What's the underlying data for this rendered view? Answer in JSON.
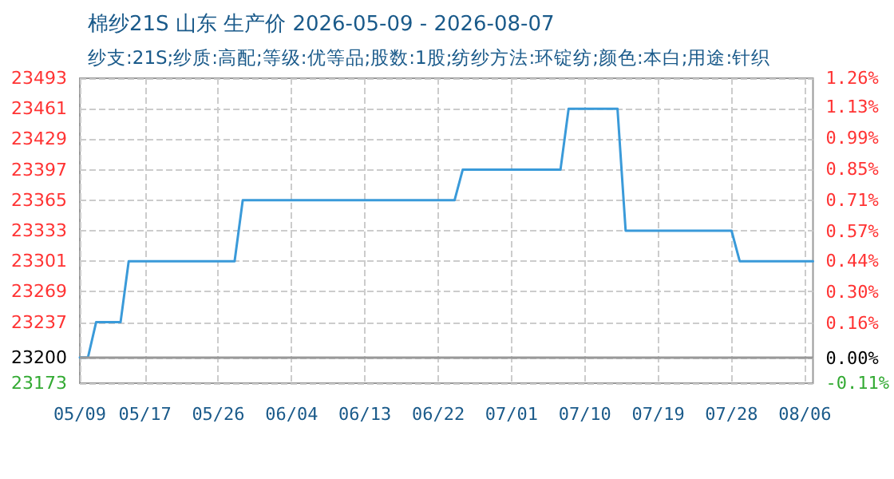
{
  "chart_data": {
    "type": "line",
    "title": "棉纱21S 山东 生产价 2026-05-09 - 2026-08-07",
    "subtitle": "纱支:21S;纱质:高配;等级:优等品;股数:1股;纺纱方法:环锭纺;颜色:本白;用途:针织",
    "x": [
      "2026-05-09",
      "2026-05-10",
      "2026-05-11",
      "2026-05-14",
      "2026-05-15",
      "2026-05-28",
      "2026-05-29",
      "2026-06-24",
      "2026-06-25",
      "2026-07-07",
      "2026-07-08",
      "2026-07-14",
      "2026-07-15",
      "2026-07-28",
      "2026-07-29",
      "2026-08-07"
    ],
    "series": [
      {
        "color": "#3a9ad9",
        "values": [
          23200,
          23200,
          23237,
          23237,
          23301,
          23301,
          23365,
          23365,
          23397,
          23397,
          23461,
          23461,
          23333,
          23333,
          23301,
          23301
        ]
      }
    ],
    "xlim": [
      "2026-05-09",
      "2026-08-07"
    ],
    "xticks": [
      {
        "value": "2026-05-09",
        "label": "05/09"
      },
      {
        "value": "2026-05-17",
        "label": "05/17"
      },
      {
        "value": "2026-05-26",
        "label": "05/26"
      },
      {
        "value": "2026-06-04",
        "label": "06/04"
      },
      {
        "value": "2026-06-13",
        "label": "06/13"
      },
      {
        "value": "2026-06-22",
        "label": "06/22"
      },
      {
        "value": "2026-07-01",
        "label": "07/01"
      },
      {
        "value": "2026-07-10",
        "label": "07/10"
      },
      {
        "value": "2026-07-19",
        "label": "07/19"
      },
      {
        "value": "2026-07-28",
        "label": "07/28"
      },
      {
        "value": "2026-08-06",
        "label": "08/06"
      }
    ],
    "ylim": [
      23173,
      23493
    ],
    "yticks": [
      23173,
      23200,
      23237,
      23269,
      23301,
      23333,
      23365,
      23397,
      23429,
      23461,
      23493
    ],
    "y2lim": [
      -0.11,
      1.26
    ],
    "y2ticks": [
      {
        "value": -0.11,
        "label": "-0.11%"
      },
      {
        "value": 0,
        "label": "0.00%"
      },
      {
        "value": 0.16,
        "label": "0.16%"
      },
      {
        "value": 0.3,
        "label": "0.30%"
      },
      {
        "value": 0.44,
        "label": "0.44%"
      },
      {
        "value": 0.57,
        "label": "0.57%"
      },
      {
        "value": 0.71,
        "label": "0.71%"
      },
      {
        "value": 0.85,
        "label": "0.85%"
      },
      {
        "value": 0.99,
        "label": "0.99%"
      },
      {
        "value": 1.13,
        "label": "1.13%"
      },
      {
        "value": 1.26,
        "label": "1.26%"
      }
    ],
    "ref_lines": [
      {
        "axis": "y",
        "value": 23200,
        "color": "#999999"
      }
    ],
    "grid": true,
    "marker": "none",
    "line_style": "solid"
  }
}
